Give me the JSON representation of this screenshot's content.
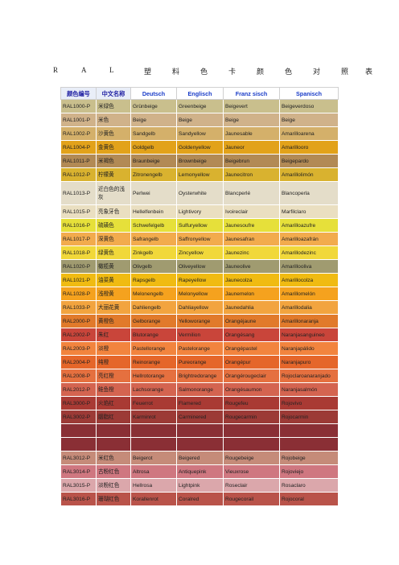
{
  "title_chars": [
    "R",
    "A",
    "L",
    "塑",
    "料",
    "色",
    "卡",
    "颜",
    "色",
    "对",
    "照",
    "表"
  ],
  "headers": {
    "code": "颜色编号",
    "cn": "中文名称",
    "de": "Deutsch",
    "en": "Englisch",
    "fr": "Franz sisch",
    "es": "Spanisch"
  },
  "rows": [
    {
      "code": "RAL1000-P",
      "cn": "米绿色",
      "de": "Grünbeige",
      "en": "Greenbeige",
      "fr": "Beigevert",
      "es": "Beigeverdoso",
      "color": "#c9bf8d"
    },
    {
      "code": "RAL1001-P",
      "cn": "米色",
      "de": "Beige",
      "en": "Beige",
      "fr": "Beige",
      "es": "Beige",
      "color": "#d0b28a"
    },
    {
      "code": "RAL1002-P",
      "cn": "沙黄色",
      "de": "Sandgelb",
      "en": "Sandyellow",
      "fr": "Jaunesable",
      "es": "Amarilloarena",
      "color": "#d4b06a"
    },
    {
      "code": "RAL1004-P",
      "cn": "金黄色",
      "de": "Goldgelb",
      "en": "Goldenyellow",
      "fr": "Jauneor",
      "es": "Amarillooro",
      "color": "#e2a21a"
    },
    {
      "code": "RAL1011-P",
      "cn": "米褐色",
      "de": "Braunbeige",
      "en": "Brownbeige",
      "fr": "Beigebrun",
      "es": "Beigepardo",
      "color": "#b28a55"
    },
    {
      "code": "RAL1012-P",
      "cn": "柠檬黄",
      "de": "Zitronengelb",
      "en": "Lemonyellow",
      "fr": "Jaunecitron",
      "es": "Amarillolimón",
      "color": "#d9b22f"
    },
    {
      "code": "RAL1013-P",
      "cn": "近白色的浅灰",
      "de": "Perlwei",
      "en": "Oysterwhite",
      "fr": "Blancperlé",
      "es": "Blancoperla",
      "color": "#e4ddc9",
      "tall": true
    },
    {
      "code": "RAL1015-P",
      "cn": "亮象牙色",
      "de": "Hellelfenbein",
      "en": "Lightivory",
      "fr": "Ivoireclair",
      "es": "Marfilclaro",
      "color": "#eadfc1"
    },
    {
      "code": "RAL1016-P",
      "cn": "硫磺色",
      "de": "Schwefelgelb",
      "en": "Sulfuryellow",
      "fr": "Jaunesoufre",
      "es": "Amarilloazufre",
      "color": "#e6e03a"
    },
    {
      "code": "RAL1017-P",
      "cn": "深黄色",
      "de": "Safrangelb",
      "en": "Saffronyellow",
      "fr": "Jaunesafran",
      "es": "Amarilloazafrán",
      "color": "#f2ab4d"
    },
    {
      "code": "RAL1018-P",
      "cn": "绿黄色",
      "de": "Zinkgelb",
      "en": "Zincyellow",
      "fr": "Jaunezinc",
      "es": "Amarillodezinc",
      "color": "#f1d83a"
    },
    {
      "code": "RAL1020-P",
      "cn": "橄榄黄",
      "de": "Olivgelb",
      "en": "Oliveyellow",
      "fr": "Jauneolive",
      "es": "Amarillooliva",
      "color": "#a09b70"
    },
    {
      "code": "RAL1021-P",
      "cn": "油菜黄",
      "de": "Rapsgelb",
      "en": "Rapeyellow",
      "fr": "Jaunecolza",
      "es": "Amarillocolza",
      "color": "#f0bb12"
    },
    {
      "code": "RAL1028-P",
      "cn": "浅橙黄",
      "de": "Melonengelb",
      "en": "Melonyellow",
      "fr": "Jaunemelon",
      "es": "Amarillomelón",
      "color": "#f5a21e"
    },
    {
      "code": "RAL1033-P",
      "cn": "大丽花黄",
      "de": "Dahliengelb",
      "en": "Dahliayellow",
      "fr": "Jaunedahlia",
      "es": "Amarillodalia",
      "color": "#f2a43f"
    },
    {
      "code": "RAL2000-P",
      "cn": "黄橙色",
      "de": "Gelborange",
      "en": "Yelloworange",
      "fr": "Orangéjaune",
      "es": "Amarillonaranja",
      "color": "#e17a2b"
    },
    {
      "code": "RAL2002-P",
      "cn": "朱红",
      "de": "Blutorange",
      "en": "Vermilion",
      "fr": "Orangésang",
      "es": "Naranjasanguineo",
      "color": "#c9453a"
    },
    {
      "code": "RAL2003-P",
      "cn": "淡橙",
      "de": "Pastellorange",
      "en": "Pastelorange",
      "fr": "Orangépastel",
      "es": "Naranjapálido",
      "color": "#f2843e"
    },
    {
      "code": "RAL2004-P",
      "cn": "纯橙",
      "de": "Reinorange",
      "en": "Pureorange",
      "fr": "Orangépur",
      "es": "Naranjapuro",
      "color": "#e5662a"
    },
    {
      "code": "RAL2008-P",
      "cn": "亮红橙",
      "de": "Hellrotorange",
      "en": "Brightredorange",
      "fr": "Orangérougeclair",
      "es": "Rojoclaroanaranjado",
      "color": "#e5703f"
    },
    {
      "code": "RAL2012-P",
      "cn": "鲑鱼橙",
      "de": "Lachsorange",
      "en": "Salmonorange",
      "fr": "Orangésaumon",
      "es": "Naranjasalmón",
      "color": "#d46450"
    },
    {
      "code": "RAL3000-P",
      "cn": "火焰红",
      "de": "Feuerrot",
      "en": "Flamered",
      "fr": "Rougefeu",
      "es": "Rojovivo",
      "color": "#a93a34"
    },
    {
      "code": "RAL3002-P",
      "cn": "胭脂红",
      "de": "Karminrot",
      "en": "Carminered",
      "fr": "Rougecarmin",
      "es": "Rojocarmin",
      "color": "#9c3a36"
    },
    {
      "code": "",
      "cn": "",
      "de": "",
      "en": "",
      "fr": "",
      "es": "",
      "color": "#8a2f35",
      "blank": true
    },
    {
      "code": "",
      "cn": "",
      "de": "",
      "en": "",
      "fr": "",
      "es": "",
      "color": "#8a2f35",
      "blank": true
    },
    {
      "code": "RAL3012-P",
      "cn": "米红色",
      "de": "Beigerot",
      "en": "Beigered",
      "fr": "Rougebeige",
      "es": "Rojobeige",
      "color": "#c58b79"
    },
    {
      "code": "RAL3014-P",
      "cn": "古粉红色",
      "de": "Altrosa",
      "en": "Antiquepink",
      "fr": "Vieuxrose",
      "es": "Rojoviejo",
      "color": "#cf7780"
    },
    {
      "code": "RAL3015-P",
      "cn": "淡粉红色",
      "de": "Hellrosa",
      "en": "Lightpink",
      "fr": "Roseclair",
      "es": "Rosaclaro",
      "color": "#dba7ab"
    },
    {
      "code": "RAL3016-P",
      "cn": "珊瑚红色",
      "de": "Korallenrot",
      "en": "Coralred",
      "fr": "Rougecorail",
      "es": "Rojocoral",
      "color": "#b9534a"
    }
  ]
}
